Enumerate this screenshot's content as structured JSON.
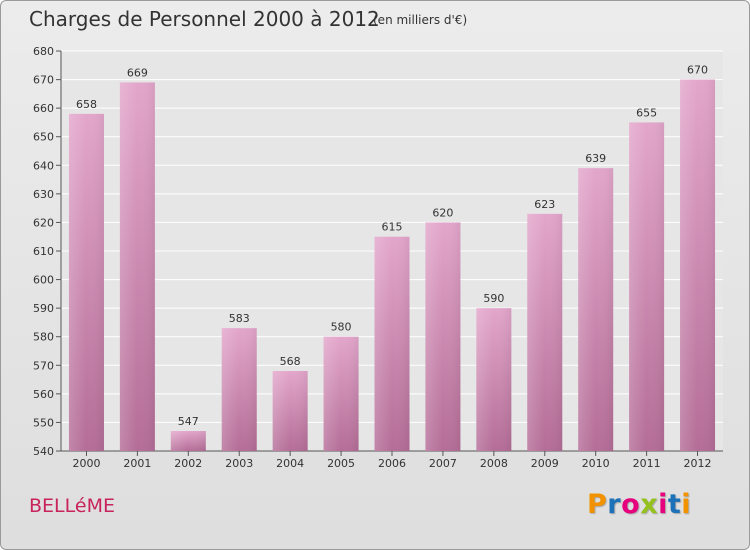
{
  "title": "Charges de Personnel 2000 à 2012",
  "subtitle": "(en milliers d'€)",
  "commune": "BELLéME",
  "logo": {
    "letters": [
      "P",
      "r",
      "o",
      "x",
      "i",
      "t",
      "i"
    ],
    "colors": [
      "#f39200",
      "#1d71b8",
      "#e6007e",
      "#95c11f",
      "#e6007e",
      "#1d71b8",
      "#f39200"
    ]
  },
  "chart_data": {
    "type": "bar",
    "categories": [
      "2000",
      "2001",
      "2002",
      "2003",
      "2004",
      "2005",
      "2006",
      "2007",
      "2008",
      "2009",
      "2010",
      "2011",
      "2012"
    ],
    "values": [
      658,
      669,
      547,
      583,
      568,
      580,
      615,
      620,
      590,
      623,
      639,
      655,
      670
    ],
    "ylim": [
      540,
      680
    ],
    "yticks": [
      540,
      550,
      560,
      570,
      580,
      590,
      600,
      610,
      620,
      630,
      640,
      650,
      660,
      670,
      680
    ],
    "grid": true,
    "bar_color": "#d48fb6"
  }
}
